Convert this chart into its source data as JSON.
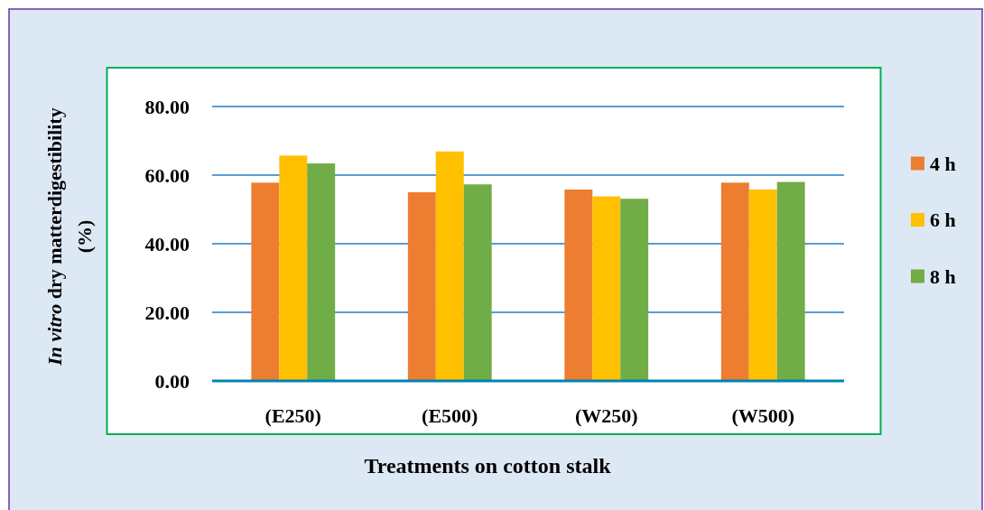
{
  "chart_data": {
    "type": "bar",
    "xlabel": "Treatments on cotton stalk",
    "ylabel": "In vitro dry matterdigestibility (%)",
    "categories": [
      "(E250)",
      "(E500)",
      "(W250)",
      "(W500)"
    ],
    "series": [
      {
        "name": "4 h",
        "color": "#ed7d31",
        "values": [
          57.8,
          55.0,
          55.8,
          57.8
        ]
      },
      {
        "name": "6 h",
        "color": "#ffc000",
        "values": [
          65.7,
          66.9,
          53.8,
          55.8
        ]
      },
      {
        "name": "8 h",
        "color": "#70ad47",
        "values": [
          63.4,
          57.3,
          53.1,
          58.0
        ]
      }
    ],
    "ylim": [
      0,
      80
    ],
    "yticks": [
      {
        "value": 0,
        "label": "0.00"
      },
      {
        "value": 20,
        "label": "20.00"
      },
      {
        "value": 40,
        "label": "40.00"
      },
      {
        "value": 60,
        "label": "60.00"
      },
      {
        "value": 80,
        "label": "80.00"
      }
    ],
    "grid": "y",
    "legend": "right"
  }
}
